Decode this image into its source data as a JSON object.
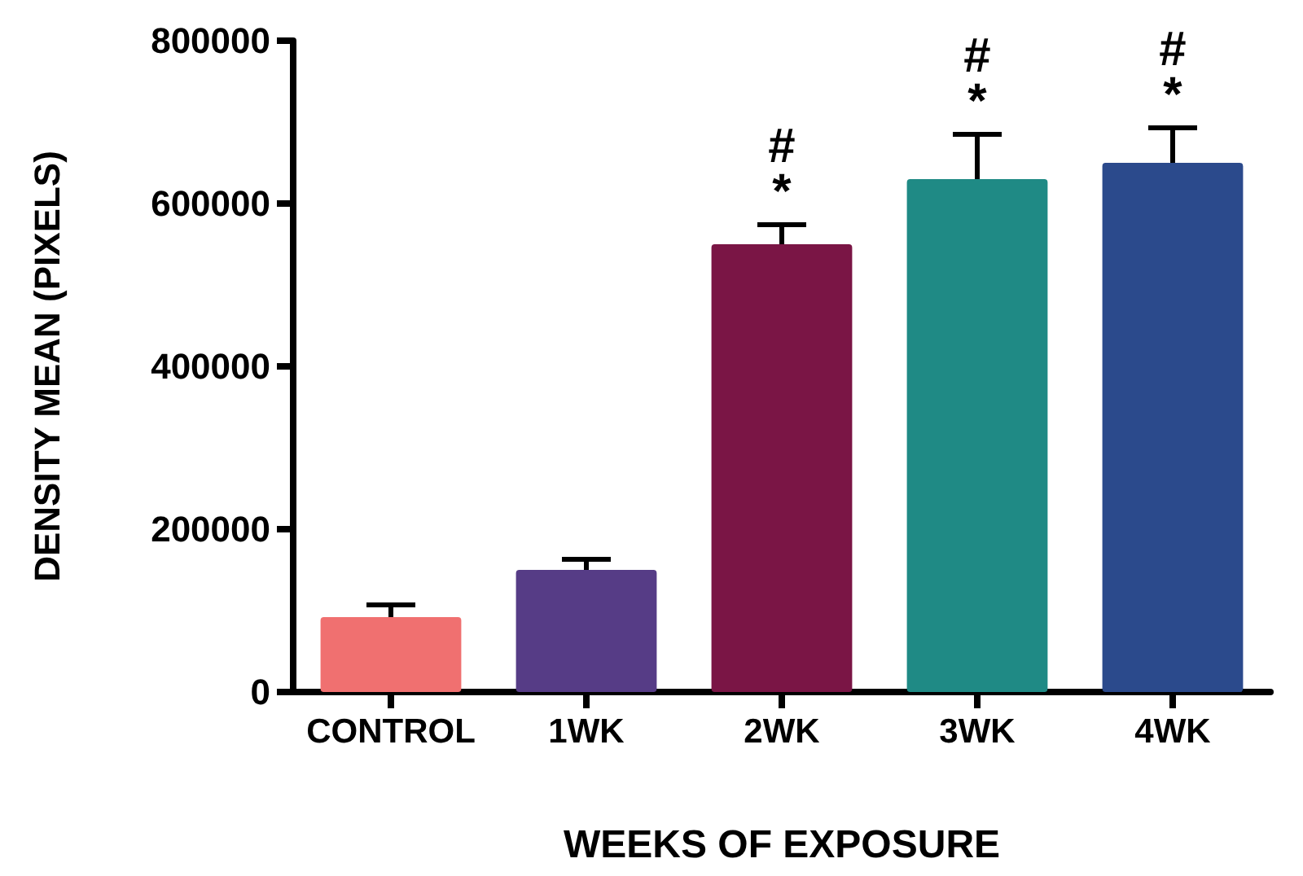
{
  "chart_data": {
    "type": "bar",
    "xlabel": "WEEKS OF EXPOSURE",
    "ylabel": "DENSITY MEAN (PIXELS)",
    "categories": [
      "CONTROL",
      "1WK",
      "2WK",
      "3WK",
      "4WK"
    ],
    "values": [
      92000,
      150000,
      550000,
      630000,
      650000
    ],
    "errors": [
      15000,
      13000,
      24000,
      55000,
      43000
    ],
    "colors": [
      "#f07070",
      "#563c86",
      "#7a1545",
      "#1f8a85",
      "#2b4a8c"
    ],
    "ylim": [
      0,
      800000
    ],
    "yticks": [
      0,
      200000,
      400000,
      600000,
      800000
    ],
    "grid": false,
    "annotations": [
      "#\n*",
      "#\n*",
      "#\n*"
    ]
  }
}
